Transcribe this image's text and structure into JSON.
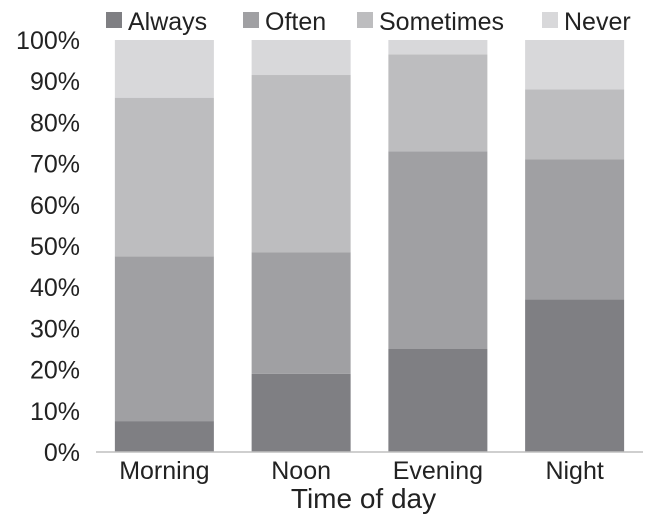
{
  "chart_data": {
    "type": "bar",
    "stacked": true,
    "title": "",
    "xlabel": "Time of day",
    "ylabel": "",
    "ylim": [
      0,
      100
    ],
    "y_unit": "%",
    "y_ticks": [
      "0%",
      "10%",
      "20%",
      "30%",
      "40%",
      "50%",
      "60%",
      "70%",
      "80%",
      "90%",
      "100%"
    ],
    "categories": [
      "Morning",
      "Noon",
      "Evening",
      "Night"
    ],
    "legend_position": "top",
    "grid": false,
    "series": [
      {
        "name": "Always",
        "color": "#7f7f83",
        "values": [
          7.5,
          19,
          25,
          37
        ]
      },
      {
        "name": "Often",
        "color": "#a0a0a3",
        "values": [
          40,
          29.5,
          48,
          34
        ]
      },
      {
        "name": "Sometimes",
        "color": "#bdbdbf",
        "values": [
          38.5,
          43,
          23.5,
          17
        ]
      },
      {
        "name": "Never",
        "color": "#d8d8da",
        "values": [
          14,
          8.5,
          3.5,
          12
        ]
      }
    ]
  }
}
